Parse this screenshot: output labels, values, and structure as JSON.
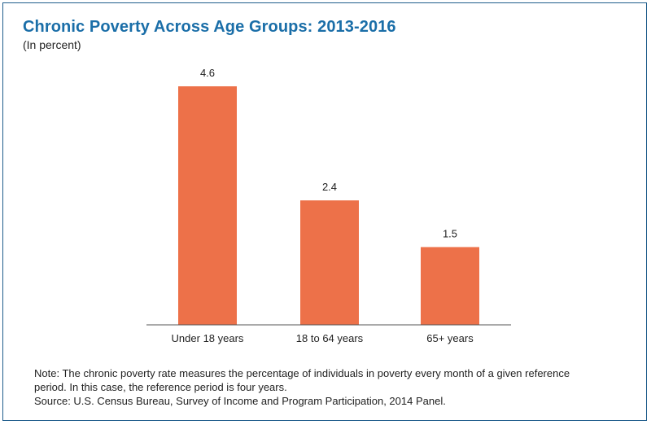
{
  "title": "Chronic Poverty Across Age Groups: 2013-2016",
  "subtitle": "(In percent)",
  "chart_data": {
    "type": "bar",
    "categories": [
      "Under 18 years",
      "18 to 64 years",
      "65+ years"
    ],
    "values": [
      4.6,
      2.4,
      1.5
    ],
    "data_labels": [
      "4.6",
      "2.4",
      "1.5"
    ],
    "ylim": [
      0,
      4.6
    ],
    "grid": false,
    "bar_color": "#ed7149"
  },
  "note": "Note: The chronic poverty rate measures the percentage of individuals in poverty every month of a given reference period. In this case, the reference period is four years.",
  "source": "Source: U.S. Census Bureau, Survey of Income and Program Participation, 2014 Panel.",
  "colors": {
    "title": "#1a6ea8",
    "border": "#1f5d8c",
    "bar": "#ed7149"
  }
}
